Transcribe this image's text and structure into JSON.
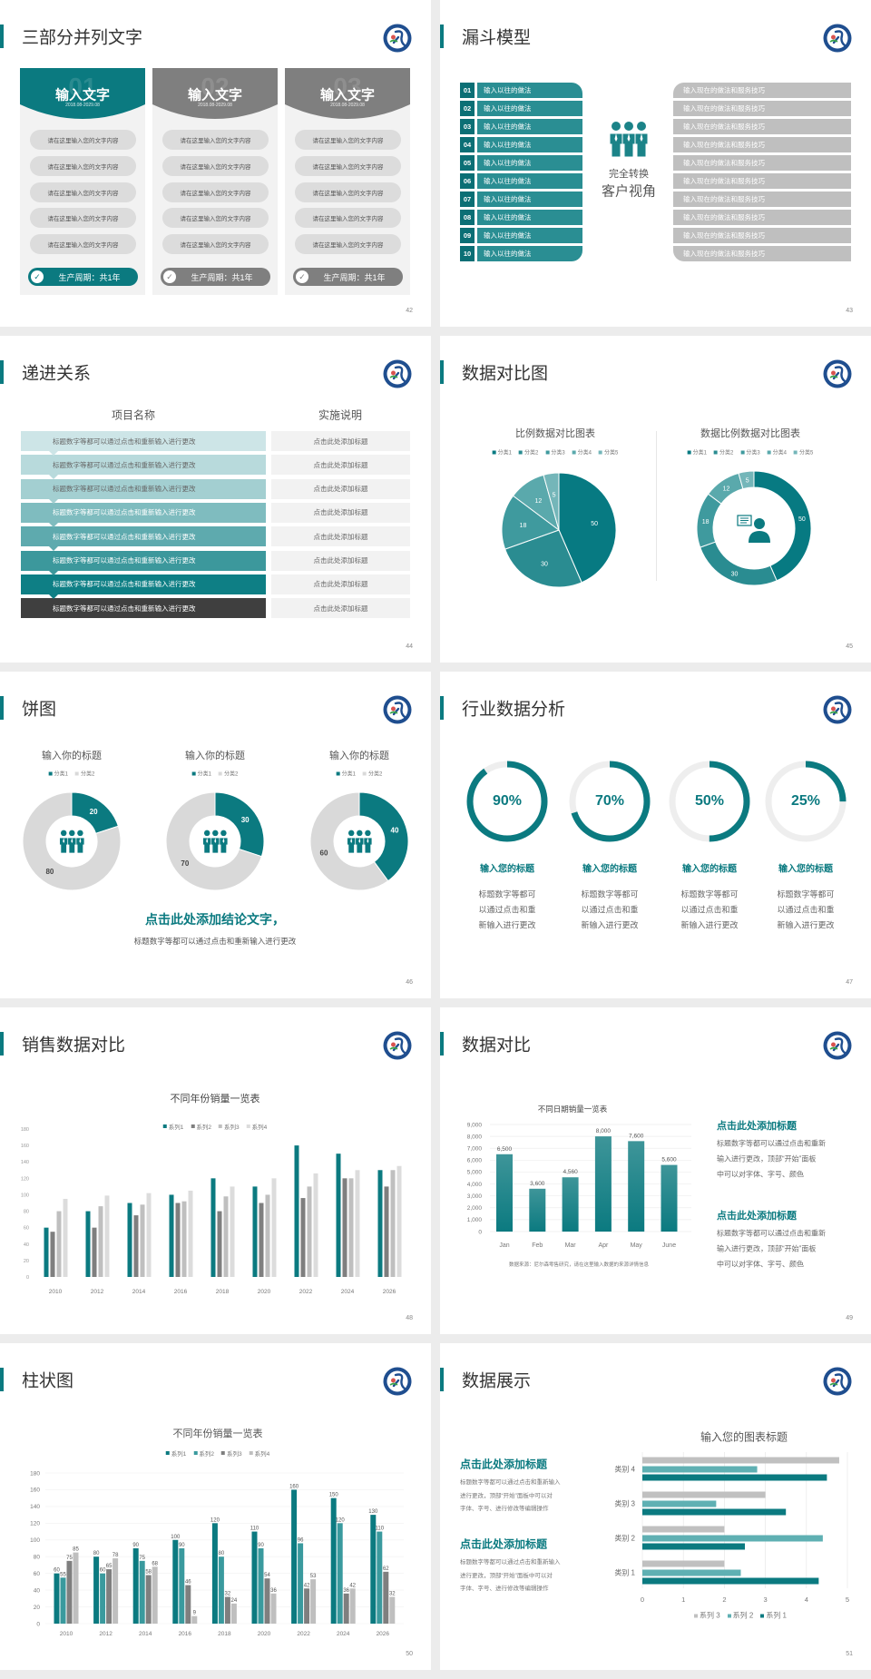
{
  "colors": {
    "teal": "#0b7a80",
    "teal_mid": "#3a9a9e",
    "gray": "#7f7f7f",
    "light_gray": "#bfbfbf",
    "pale_gray": "#d9d9d9",
    "logo_blue": "#1f4e8f"
  },
  "slides": [
    {
      "title": "三部分并列文字",
      "page": "42",
      "cards": [
        {
          "number": "01",
          "heading": "输入文字",
          "date": "2018.08-2029.08",
          "style": "teal",
          "items": [
            "请在这里输入您的文字内容",
            "请在这里输入您的文字内容",
            "请在这里输入您的文字内容",
            "请在这里输入您的文字内容",
            "请在这里输入您的文字内容"
          ],
          "footer": "生产周期：共1年",
          "icon": "check-circle-icon"
        },
        {
          "number": "02",
          "heading": "输入文字",
          "date": "2018.08-2029.08",
          "style": "gray",
          "items": [
            "请在这里输入您的文字内容",
            "请在这里输入您的文字内容",
            "请在这里输入您的文字内容",
            "请在这里输入您的文字内容",
            "请在这里输入您的文字内容"
          ],
          "footer": "生产周期：共1年",
          "icon": "check-circle-icon"
        },
        {
          "number": "03",
          "heading": "输入文字",
          "date": "2018.08-2029.08",
          "style": "gray",
          "items": [
            "请在这里输入您的文字内容",
            "请在这里输入您的文字内容",
            "请在这里输入您的文字内容",
            "请在这里输入您的文字内容",
            "请在这里输入您的文字内容"
          ],
          "footer": "生产周期：共1年",
          "icon": "check-circle-icon"
        }
      ]
    },
    {
      "title": "漏斗模型",
      "page": "43",
      "left_items": [
        {
          "num": "01",
          "text": "输入以往的做法"
        },
        {
          "num": "02",
          "text": "输入以往的做法"
        },
        {
          "num": "03",
          "text": "输入以往的做法"
        },
        {
          "num": "04",
          "text": "输入以往的做法"
        },
        {
          "num": "05",
          "text": "输入以往的做法"
        },
        {
          "num": "06",
          "text": "输入以往的做法"
        },
        {
          "num": "07",
          "text": "输入以往的做法"
        },
        {
          "num": "08",
          "text": "输入以往的做法"
        },
        {
          "num": "09",
          "text": "输入以往的做法"
        },
        {
          "num": "10",
          "text": "输入以往的做法"
        }
      ],
      "center": [
        "完全转换",
        "客户视角"
      ],
      "center_icon": "people-group-icon",
      "right_items": [
        "输入现在的做法和服务技巧",
        "输入现在的做法和服务技巧",
        "输入现在的做法和服务技巧",
        "输入现在的做法和服务技巧",
        "输入现在的做法和服务技巧",
        "输入现在的做法和服务技巧",
        "输入现在的做法和服务技巧",
        "输入现在的做法和服务技巧",
        "输入现在的做法和服务技巧",
        "输入现在的做法和服务技巧"
      ]
    },
    {
      "title": "递进关系",
      "page": "44",
      "headers": [
        "项目名称",
        "实施说明"
      ],
      "rows": [
        {
          "item": "标题数字等都可以通过点击和重新输入进行更改",
          "note": "点击此处添加标题"
        },
        {
          "item": "标题数字等都可以通过点击和重新输入进行更改",
          "note": "点击此处添加标题"
        },
        {
          "item": "标题数字等都可以通过点击和重新输入进行更改",
          "note": "点击此处添加标题"
        },
        {
          "item": "标题数字等都可以通过点击和重新输入进行更改",
          "note": "点击此处添加标题"
        },
        {
          "item": "标题数字等都可以通过点击和重新输入进行更改",
          "note": "点击此处添加标题"
        },
        {
          "item": "标题数字等都可以通过点击和重新输入进行更改",
          "note": "点击此处添加标题"
        },
        {
          "item": "标题数字等都可以通过点击和重新输入进行更改",
          "note": "点击此处添加标题"
        },
        {
          "item": "标题数字等都可以通过点击和重新输入进行更改",
          "note": "点击此处添加标题"
        }
      ]
    },
    {
      "title": "数据对比图",
      "page": "45",
      "center_icon": "customer-service-person-icon"
    },
    {
      "title": "饼图",
      "page": "46",
      "conclusion": "点击此处添加结论文字，",
      "subtext": "标题数字等都可以通过点击和重新输入进行更改",
      "center_icon": "people-group-icon"
    },
    {
      "title": "行业数据分析",
      "page": "47",
      "metrics": [
        {
          "percent": 90,
          "label": "90%",
          "title": "输入您的标题",
          "desc": [
            "标题数字等都可",
            "以通过点击和重",
            "新输入进行更改"
          ]
        },
        {
          "percent": 70,
          "label": "70%",
          "title": "输入您的标题",
          "desc": [
            "标题数字等都可",
            "以通过点击和重",
            "新输入进行更改"
          ]
        },
        {
          "percent": 50,
          "label": "50%",
          "title": "输入您的标题",
          "desc": [
            "标题数字等都可",
            "以通过点击和重",
            "新输入进行更改"
          ]
        },
        {
          "percent": 25,
          "label": "25%",
          "title": "输入您的标题",
          "desc": [
            "标题数字等都可",
            "以通过点击和重",
            "新输入进行更改"
          ]
        }
      ]
    },
    {
      "title": "销售数据对比",
      "page": "48"
    },
    {
      "title": "数据对比",
      "page": "49",
      "source": "数据来源：尼尔森零售研究，请在这里输入数据的来源详情信息",
      "blocks": [
        {
          "heading": "点击此处添加标题",
          "lines": [
            "标题数字等都可以通过点击和重新",
            "输入进行更改，顶部“开始”面板",
            "中可以对字体、字号、颜色"
          ]
        },
        {
          "heading": "点击此处添加标题",
          "lines": [
            "标题数字等都可以通过点击和重新",
            "输入进行更改，顶部“开始”面板",
            "中可以对字体、字号、颜色"
          ]
        }
      ]
    },
    {
      "title": "柱状图",
      "page": "50"
    },
    {
      "title": "数据展示",
      "page": "51",
      "blocks": [
        {
          "heading": "点击此处添加标题",
          "lines": [
            "标题数字等都可以通过点击和重新输入",
            "进行更改，顶部“开始”面板中可以对",
            "字体、字号、进行修改等编辑操作"
          ]
        },
        {
          "heading": "点击此处添加标题",
          "lines": [
            "标题数字等都可以通过点击和重新输入",
            "进行更改，顶部“开始”面板中可以对",
            "字体、字号、进行修改等编辑操作"
          ]
        }
      ]
    }
  ],
  "chart_data": [
    {
      "type": "pie",
      "title": "比例数据对比图表",
      "categories": [
        "分类1",
        "分类2",
        "分类3",
        "分类4",
        "分类5"
      ],
      "values": [
        50,
        30,
        18,
        12,
        5
      ],
      "colors": [
        "#077a82",
        "#2a8c91",
        "#3f9a9e",
        "#5aa9ac",
        "#74b6b9"
      ],
      "legend": "top"
    },
    {
      "type": "pie",
      "variant": "donut",
      "title": "数据比例数据对比图表",
      "categories": [
        "分类1",
        "分类2",
        "分类3",
        "分类4",
        "分类5"
      ],
      "values": [
        50,
        30,
        18,
        12,
        5
      ],
      "colors": [
        "#077a82",
        "#2a8c91",
        "#3f9a9e",
        "#5aa9ac",
        "#74b6b9"
      ],
      "legend": "top"
    },
    {
      "type": "pie",
      "variant": "donut",
      "title": "输入你的标题",
      "categories": [
        "分类1",
        "分类2"
      ],
      "values": [
        20,
        80
      ],
      "colors": [
        "#0b7a80",
        "#d9d9d9"
      ],
      "legend": "top"
    },
    {
      "type": "pie",
      "variant": "donut",
      "title": "输入你的标题",
      "categories": [
        "分类1",
        "分类2"
      ],
      "values": [
        30,
        70
      ],
      "colors": [
        "#0b7a80",
        "#d9d9d9"
      ],
      "legend": "top"
    },
    {
      "type": "pie",
      "variant": "donut",
      "title": "输入你的标题",
      "categories": [
        "分类1",
        "分类2"
      ],
      "values": [
        40,
        60
      ],
      "colors": [
        "#0b7a80",
        "#d9d9d9"
      ],
      "legend": "top"
    },
    {
      "type": "bar",
      "title": "不同年份销量一览表",
      "categories": [
        "2010",
        "2012",
        "2014",
        "2016",
        "2018",
        "2020",
        "2022",
        "2024",
        "2026"
      ],
      "series": [
        {
          "name": "系列1",
          "color": "#0b7a80",
          "values": [
            60,
            80,
            90,
            100,
            120,
            110,
            160,
            150,
            130
          ]
        },
        {
          "name": "系列2",
          "color": "#7f7f7f",
          "values": [
            55,
            60,
            75,
            90,
            80,
            90,
            96,
            120,
            110
          ]
        },
        {
          "name": "系列3",
          "color": "#bfbfbf",
          "values": [
            80,
            86,
            88,
            92,
            98,
            100,
            110,
            120,
            130
          ]
        },
        {
          "name": "系列4",
          "color": "#dcdcdc",
          "values": [
            95,
            99,
            102,
            105,
            110,
            120,
            126,
            130,
            135
          ]
        }
      ],
      "ylim": [
        0,
        180
      ],
      "yticks": [
        "0",
        "20",
        "40",
        "60",
        "80",
        "100",
        "120",
        "140",
        "160",
        "180"
      ],
      "legend": "top",
      "grid": false
    },
    {
      "type": "bar",
      "title": "不同日期销量一览表",
      "categories": [
        "Jan",
        "Feb",
        "Mar",
        "Apr",
        "May",
        "June"
      ],
      "values": [
        6500,
        3600,
        4560,
        8000,
        7600,
        5600
      ],
      "value_labels": [
        "6,500",
        "3,600",
        "4,560",
        "8,000",
        "7,600",
        "5,600"
      ],
      "ylim": [
        0,
        9000
      ],
      "yticks": [
        "0",
        "1,000",
        "2,000",
        "3,000",
        "4,000",
        "5,000",
        "6,000",
        "7,000",
        "8,000",
        "9,000"
      ],
      "grid": true,
      "color": "#0b7a80"
    },
    {
      "type": "bar",
      "title": "不同年份销量一览表",
      "categories": [
        "2010",
        "2012",
        "2014",
        "2016",
        "2018",
        "2020",
        "2022",
        "2024",
        "2026"
      ],
      "series": [
        {
          "name": "系列1",
          "color": "#0b7a80",
          "values": [
            60,
            80,
            90,
            100,
            120,
            110,
            160,
            150,
            130
          ]
        },
        {
          "name": "系列2",
          "color": "#3a9a9e",
          "values": [
            55,
            60,
            75,
            90,
            80,
            90,
            96,
            120,
            110
          ]
        },
        {
          "name": "系列3",
          "color": "#7f7f7f",
          "values": [
            75,
            65,
            58,
            46,
            32,
            54,
            42,
            36,
            62
          ]
        },
        {
          "name": "系列4",
          "color": "#bfbfbf",
          "values": [
            85,
            78,
            68,
            9,
            24,
            36,
            53,
            42,
            32
          ]
        }
      ],
      "ylim": [
        0,
        180
      ],
      "yticks": [
        "0",
        "20",
        "40",
        "60",
        "80",
        "100",
        "120",
        "140",
        "160",
        "180"
      ],
      "data_labels": true,
      "legend": "top",
      "grid": true
    },
    {
      "type": "bar",
      "orientation": "horizontal",
      "title": "输入您的图表标题",
      "categories": [
        "类别 1",
        "类别 2",
        "类别 3",
        "类别 4"
      ],
      "series": [
        {
          "name": "系列 1",
          "color": "#0b7a80",
          "values": [
            4.3,
            2.5,
            3.5,
            4.5
          ]
        },
        {
          "name": "系列 2",
          "color": "#5fb0b3",
          "values": [
            2.4,
            4.4,
            1.8,
            2.8
          ]
        },
        {
          "name": "系列 3",
          "color": "#c0c0c0",
          "values": [
            2,
            2,
            3,
            4.8
          ]
        }
      ],
      "xlim": [
        0,
        5
      ],
      "xticks": [
        "0",
        "1",
        "2",
        "3",
        "4",
        "5"
      ],
      "legend": "bottom",
      "grid": true
    }
  ]
}
